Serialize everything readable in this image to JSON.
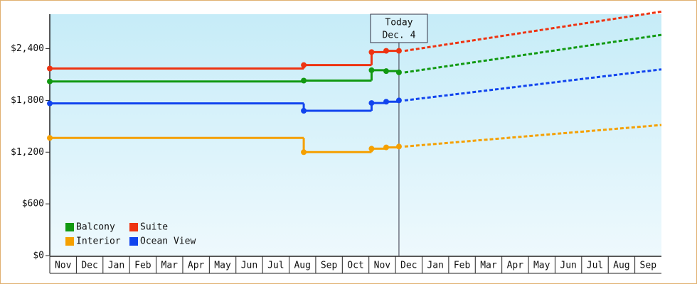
{
  "chart_data": {
    "type": "step",
    "categories": [
      "Nov",
      "Dec",
      "Jan",
      "Feb",
      "Mar",
      "Apr",
      "May",
      "Jun",
      "Jul",
      "Aug",
      "Sep",
      "Oct",
      "Nov",
      "Dec",
      "Jan",
      "Feb",
      "Mar",
      "Apr",
      "May",
      "Jun",
      "Jul",
      "Aug",
      "Sep"
    ],
    "xlim": [
      0,
      23
    ],
    "ylim": [
      0,
      2800
    ],
    "yticks": [
      {
        "value": 0,
        "label": "$0"
      },
      {
        "value": 600,
        "label": "$600"
      },
      {
        "value": 1200,
        "label": "$1,200"
      },
      {
        "value": 1800,
        "label": "$1,800"
      },
      {
        "value": 2400,
        "label": "$2,400"
      }
    ],
    "grid": false,
    "legend": "lower left",
    "today": {
      "x": 13.13,
      "label": [
        "Today",
        "Dec. 4"
      ]
    },
    "series": [
      {
        "name": "Balcony",
        "color": "#119911",
        "x": [
          0,
          9.55,
          12.1,
          12.65,
          13.13
        ],
        "values": [
          2020,
          2030,
          2150,
          2140,
          2125
        ],
        "forecast": {
          "x": [
            13.13,
            23
          ],
          "values": [
            2125,
            2560
          ]
        }
      },
      {
        "name": "Suite",
        "color": "#ee3311",
        "x": [
          0,
          9.55,
          12.1,
          12.65,
          13.13
        ],
        "values": [
          2170,
          2210,
          2360,
          2375,
          2375
        ],
        "forecast": {
          "x": [
            13.13,
            23
          ],
          "values": [
            2375,
            2830
          ]
        }
      },
      {
        "name": "Interior",
        "color": "#f5a000",
        "x": [
          0,
          9.55,
          12.1,
          12.65,
          13.13
        ],
        "values": [
          1365,
          1200,
          1240,
          1255,
          1265
        ],
        "forecast": {
          "x": [
            13.13,
            23
          ],
          "values": [
            1265,
            1515
          ]
        }
      },
      {
        "name": "Ocean View",
        "color": "#1144ee",
        "x": [
          0,
          9.55,
          12.1,
          12.65,
          13.13
        ],
        "values": [
          1765,
          1680,
          1770,
          1785,
          1800
        ],
        "forecast": {
          "x": [
            13.13,
            23
          ],
          "values": [
            1800,
            2160
          ]
        }
      }
    ]
  }
}
